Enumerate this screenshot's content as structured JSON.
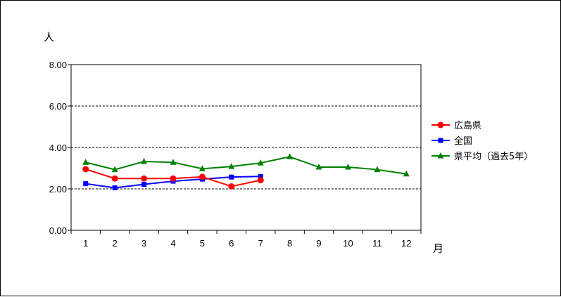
{
  "chart_data": {
    "type": "line",
    "title": "",
    "xlabel": "月",
    "ylabel": "人",
    "categories": [
      "1",
      "2",
      "3",
      "4",
      "5",
      "6",
      "7",
      "8",
      "9",
      "10",
      "11",
      "12"
    ],
    "ylim": [
      0,
      8
    ],
    "yticks": [
      "0.00",
      "2.00",
      "4.00",
      "6.00",
      "8.00"
    ],
    "grid": true,
    "legend_position": "right",
    "series": [
      {
        "name": "広島県",
        "color": "#ff0000",
        "marker": "circle",
        "values": [
          2.95,
          2.5,
          2.5,
          2.5,
          2.58,
          2.12,
          2.42,
          null,
          null,
          null,
          null,
          null
        ]
      },
      {
        "name": "全国",
        "color": "#0000ff",
        "marker": "square",
        "values": [
          2.25,
          2.05,
          2.22,
          2.37,
          2.47,
          2.57,
          2.6,
          null,
          null,
          null,
          null,
          null
        ]
      },
      {
        "name": "県平均（過去5年）",
        "color": "#008000",
        "marker": "triangle",
        "values": [
          3.28,
          2.93,
          3.32,
          3.28,
          2.97,
          3.08,
          3.25,
          3.55,
          3.05,
          3.05,
          2.93,
          2.72
        ]
      }
    ]
  }
}
